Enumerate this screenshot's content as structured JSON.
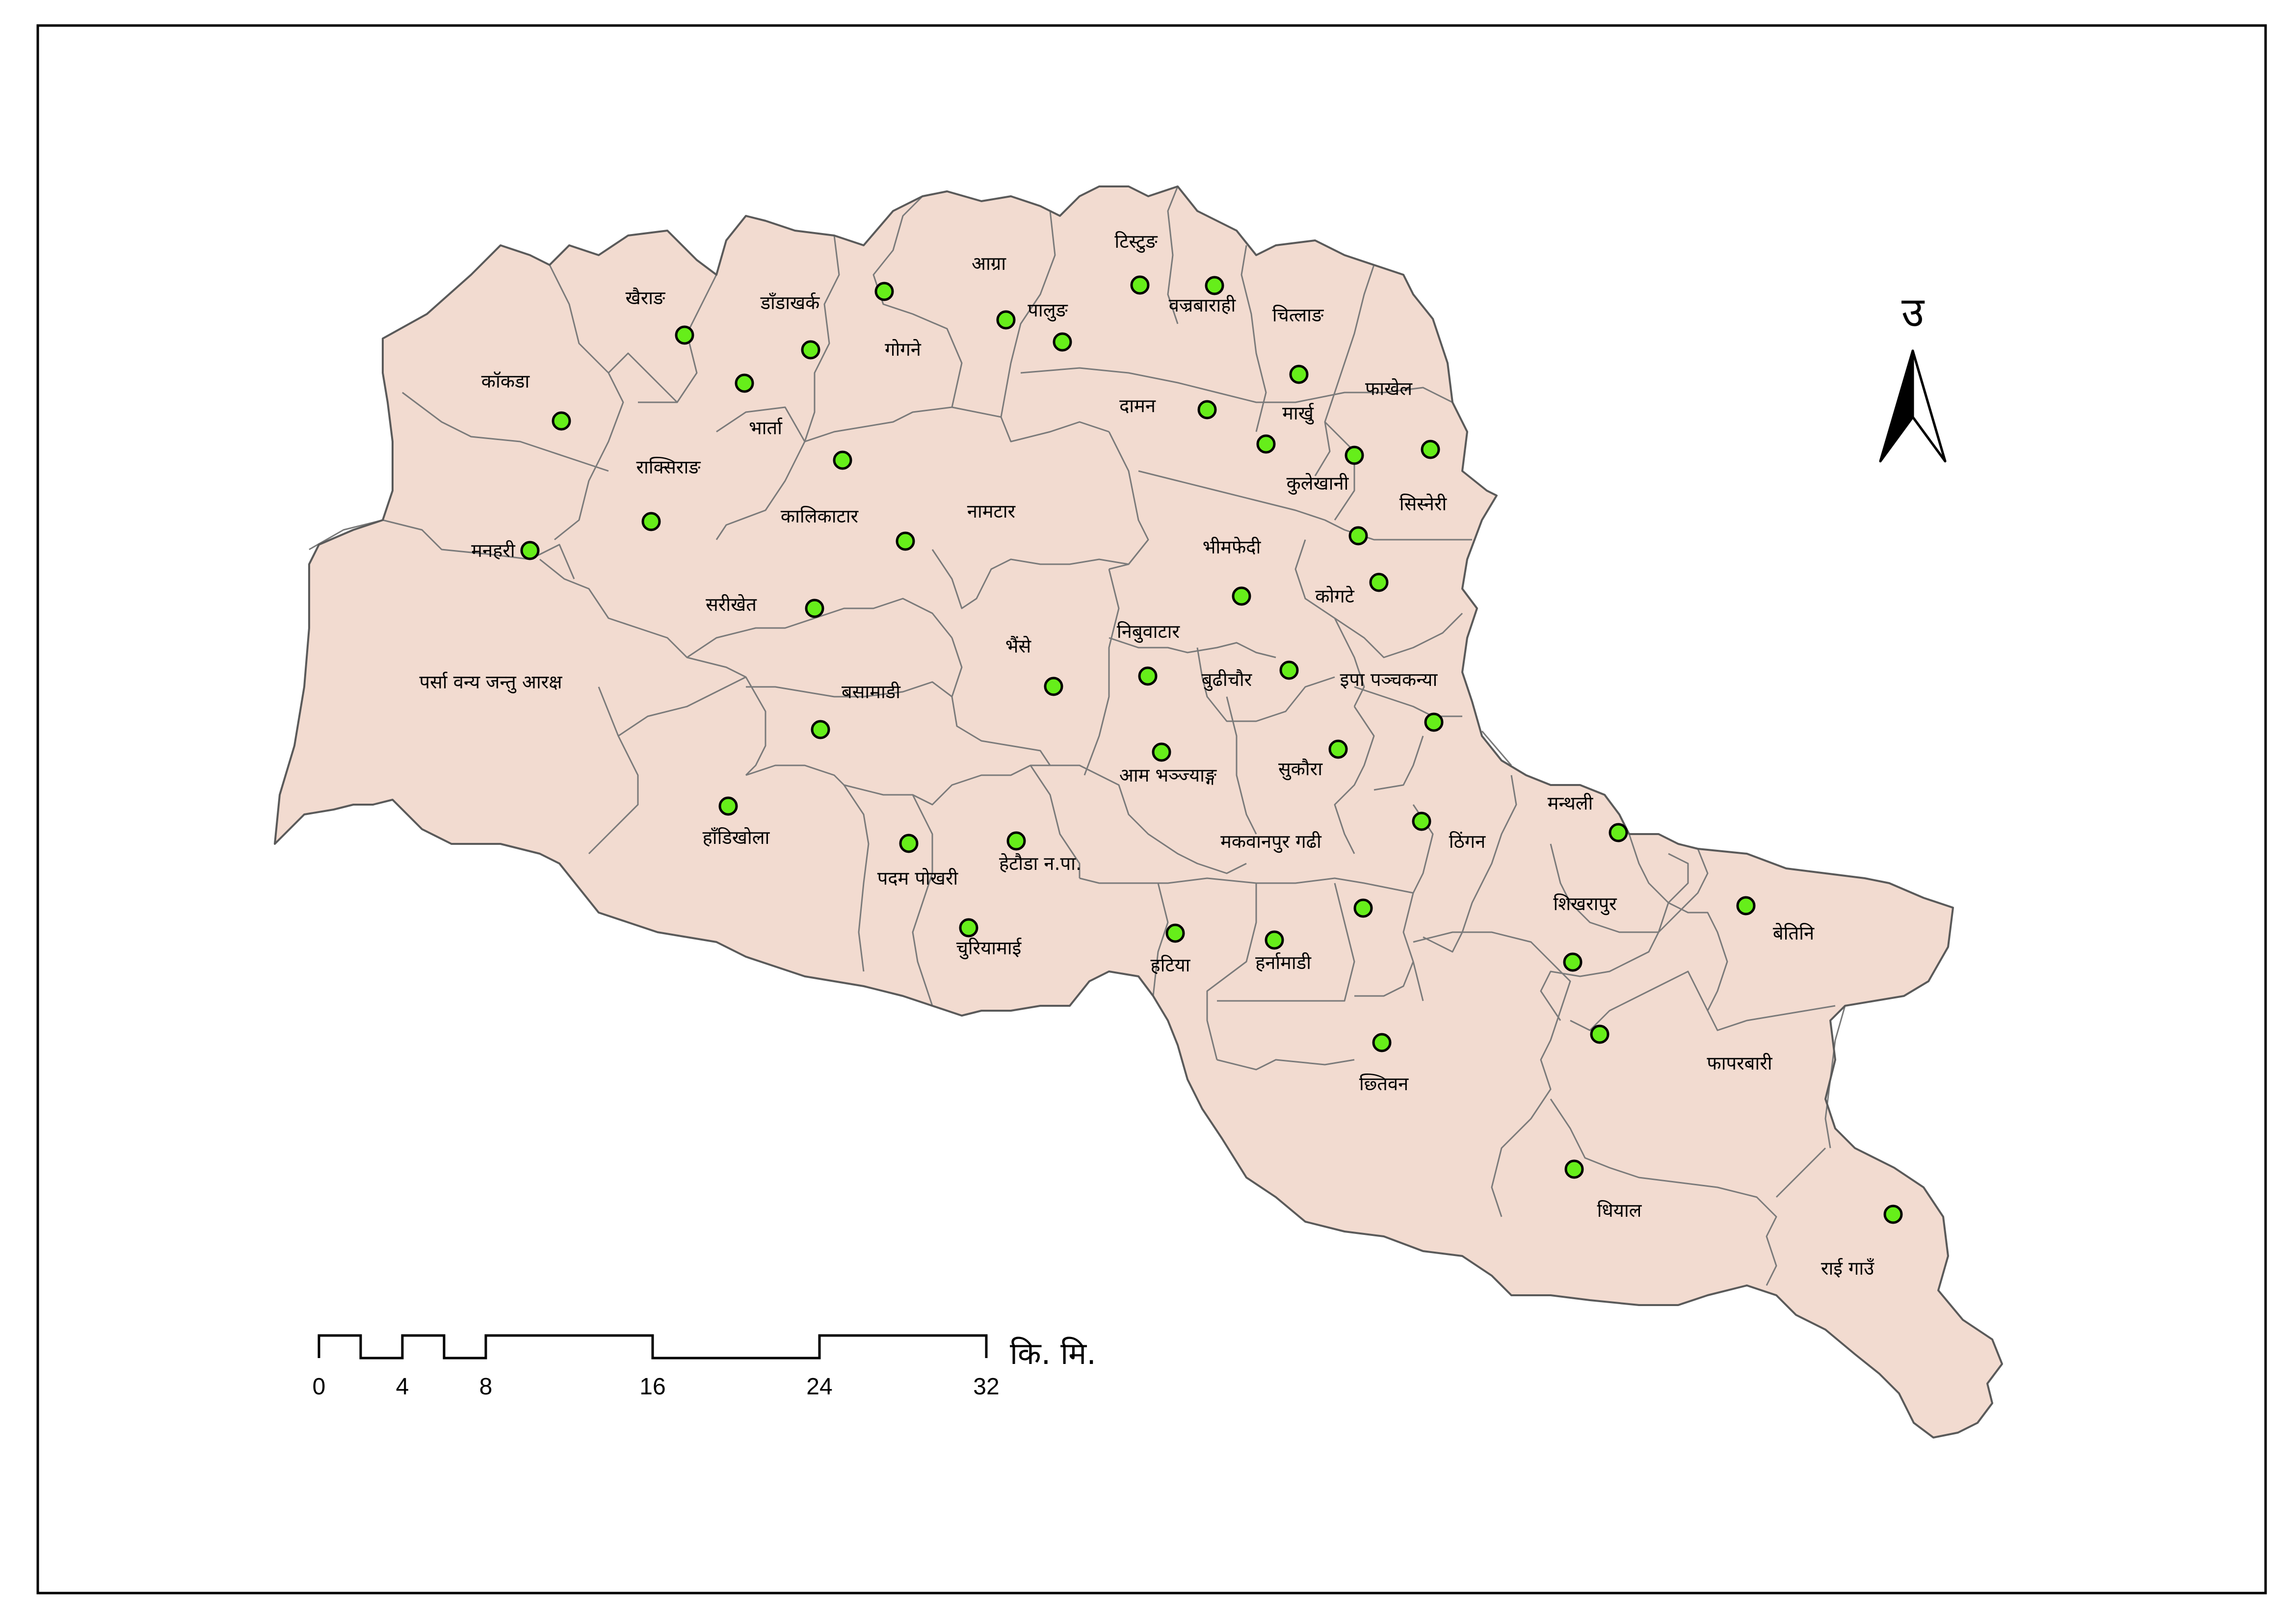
{
  "colors": {
    "district_fill": "#f2dbd0",
    "boundary": "#6e6e6e",
    "point_fill": "#66ee1a",
    "point_stroke": "#000000"
  },
  "north_arrow": {
    "label": "उ",
    "icon": "north-arrow-icon"
  },
  "scale_bar": {
    "ticks": [
      "0",
      "4",
      "8",
      "16",
      "24",
      "32"
    ],
    "unit": "कि. मि."
  },
  "labels": [
    "कॉकडा",
    "खैराङ",
    "डाँडाखर्क",
    "आग्रा",
    "टिस्टुङ",
    "वज्रबाराही",
    "चित्लाङ",
    "गोगने",
    "पालुङ",
    "दामन",
    "फाखेल",
    "मार्खु",
    "कुलेखानी",
    "सिस्नेरी",
    "भार्ता",
    "राक्सिराङ",
    "कालिकाटार",
    "नामटार",
    "मनहरी",
    "भीमफेदी",
    "कोगटे",
    "सरीखेत",
    "पर्सा वन्य जन्तु आरक्ष",
    "भैंसे",
    "निबुवाटार",
    "बुढीचौर",
    "इपा पञ्चकन्या",
    "बसामाडी",
    "आम भञ्ज्याङ्ग",
    "सुकौरा",
    "मन्थली",
    "हाँडिखोला",
    "मकवानपुर गढी",
    "ठिंगन",
    "पदम पोखरी",
    "हेटौडा न.पा.",
    "शिखरापुर",
    "बेतिनि",
    "चुरियामाई",
    "हटिया",
    "हर्नामाडी",
    "फापरबारी",
    "छ्तिवन",
    "धियाल",
    "राई गाउँ"
  ],
  "settlement_points": [
    "कॉकडा",
    "खैराङ",
    "डाँडाखर्क",
    "गोगने",
    "आग्रा",
    "टिस्टुङ",
    "वज्रबाराही",
    "पालुङ",
    "चित्लाङ",
    "दामन",
    "भार्ता",
    "मार्खु",
    "कुलेखानी",
    "फाखेल",
    "राक्सिराङ",
    "कालिकाटार",
    "मनहरी",
    "नामटार",
    "सिस्नेरी",
    "कोगटे",
    "भीमफेदी",
    "सरीखेत",
    "भैंसे",
    "निबुवाटार",
    "बुढीचौर",
    "इपा पञ्चकन्या",
    "बसामाडी",
    "आम भञ्ज्याङ्ग",
    "सुकौरा",
    "हाँडिखोला",
    "ठिंगन",
    "मन्थली",
    "पदम पोखरी",
    "हेटौडा न.पा.",
    "बेतिनि",
    "मकवानपुर गढी",
    "चुरियामाई",
    "हटिया",
    "हर्नामाडी",
    "शिखरापुर",
    "फापरबारी",
    "छ्तिवन",
    "धियाल",
    "राई गाउँ"
  ]
}
